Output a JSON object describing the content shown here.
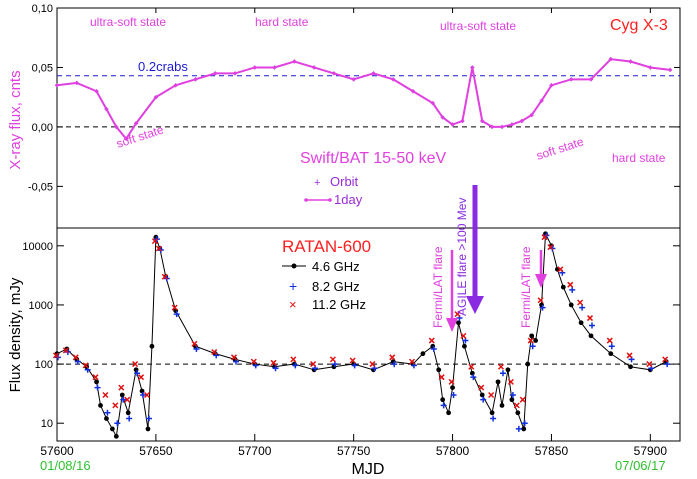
{
  "chart_data": [
    {
      "type": "scatter",
      "panel": "top",
      "ylabel": "X-ray flux, cnts",
      "xlim": [
        57600,
        57915
      ],
      "ylim": [
        -0.085,
        0.1
      ],
      "yticks": [
        -0.05,
        0.0,
        0.05,
        0.1
      ],
      "ytick_labels": [
        "-0,05",
        "0,00",
        "0,05",
        "0,10"
      ],
      "hlines": [
        {
          "y": 0.043,
          "style": "dashed",
          "color": "#1a1ad0",
          "label": "0.2crabs"
        },
        {
          "y": 0.0,
          "style": "dashed",
          "color": "#000000",
          "label": ""
        }
      ],
      "series": [
        {
          "name": "Orbit",
          "marker": "plus",
          "color": "#9a2bd6",
          "x": [
            57600,
            57610,
            57620,
            57625,
            57630,
            57635,
            57640,
            57650,
            57660,
            57670,
            57680,
            57690,
            57700,
            57710,
            57720,
            57730,
            57740,
            57750,
            57760,
            57770,
            57780,
            57790,
            57795,
            57800,
            57805,
            57810,
            57815,
            57820,
            57825,
            57830,
            57835,
            57840,
            57845,
            57850,
            57860,
            57870,
            57880,
            57890,
            57900,
            57910
          ],
          "values": [
            0.035,
            0.037,
            0.03,
            0.015,
            0.0,
            -0.01,
            0.003,
            0.025,
            0.035,
            0.04,
            0.045,
            0.045,
            0.05,
            0.05,
            0.055,
            0.05,
            0.045,
            0.04,
            0.045,
            0.04,
            0.03,
            0.02,
            0.008,
            0.002,
            0.005,
            0.05,
            0.005,
            0.0,
            0.0,
            0.002,
            0.005,
            0.01,
            0.022,
            0.035,
            0.04,
            0.04,
            0.057,
            0.055,
            0.05,
            0.048
          ]
        },
        {
          "name": "1day",
          "marker": "line",
          "color": "#e040e0",
          "x": [
            57600,
            57610,
            57620,
            57625,
            57630,
            57635,
            57640,
            57650,
            57660,
            57670,
            57680,
            57690,
            57700,
            57710,
            57720,
            57730,
            57740,
            57750,
            57760,
            57770,
            57780,
            57790,
            57795,
            57800,
            57805,
            57810,
            57815,
            57820,
            57825,
            57830,
            57835,
            57840,
            57845,
            57850,
            57860,
            57870,
            57880,
            57890,
            57900,
            57910
          ],
          "values": [
            0.035,
            0.037,
            0.03,
            0.015,
            0.0,
            -0.01,
            0.003,
            0.025,
            0.035,
            0.04,
            0.045,
            0.045,
            0.05,
            0.05,
            0.055,
            0.05,
            0.045,
            0.04,
            0.045,
            0.04,
            0.03,
            0.02,
            0.008,
            0.002,
            0.005,
            0.05,
            0.005,
            0.0,
            0.0,
            0.002,
            0.005,
            0.01,
            0.022,
            0.035,
            0.04,
            0.04,
            0.057,
            0.055,
            0.05,
            0.048
          ]
        }
      ],
      "annotations": {
        "state_ultrasoft_1": "ultra-soft state",
        "state_hard_1": "hard state",
        "state_ultrasoft_2": "ultra-soft state",
        "source": "Cyg X-3",
        "soft_1": "soft state",
        "soft_2": "soft state",
        "hard_2": "hard state",
        "instrument": "Swift/BAT  15-50 keV",
        "legend_orbit": "Orbit",
        "legend_day": "1day",
        "crab_level": "0.2crabs"
      },
      "colors": {
        "orbit": "#9a2bd6",
        "day": "#e040e0",
        "crab_line": "#1a1ad0",
        "source": "#ff2020"
      }
    },
    {
      "type": "scatter",
      "panel": "bottom",
      "title": "RATAN-600",
      "xlabel": "MJD",
      "ylabel": "Flux density, mJy",
      "yscale": "log",
      "xlim": [
        57600,
        57915
      ],
      "ylim": [
        5,
        20000
      ],
      "xticks": [
        57600,
        57650,
        57700,
        57750,
        57800,
        57850,
        57900
      ],
      "xtick_labels": [
        "57600",
        "57650",
        "57700",
        "57750",
        "57800",
        "57850",
        "57900"
      ],
      "yticks": [
        10,
        100,
        1000,
        10000
      ],
      "ytick_labels": [
        "10",
        "100",
        "1000",
        "10000"
      ],
      "hline": {
        "y": 100,
        "style": "dashed"
      },
      "series": [
        {
          "name": "4.6 GHz",
          "marker": "dot-line",
          "color": "#000000",
          "x": [
            57600,
            57605,
            57610,
            57615,
            57620,
            57622,
            57625,
            57628,
            57630,
            57633,
            57636,
            57640,
            57643,
            57646,
            57648,
            57650,
            57652,
            57655,
            57660,
            57670,
            57680,
            57690,
            57700,
            57710,
            57720,
            57730,
            57740,
            57750,
            57760,
            57770,
            57780,
            57785,
            57790,
            57793,
            57795,
            57798,
            57800,
            57803,
            57806,
            57810,
            57815,
            57820,
            57823,
            57825,
            57828,
            57830,
            57833,
            57836,
            57838,
            57840,
            57842,
            57845,
            57847,
            57850,
            57853,
            57856,
            57860,
            57865,
            57870,
            57880,
            57890,
            57900,
            57908
          ],
          "values": [
            150,
            180,
            120,
            90,
            50,
            20,
            12,
            8,
            6,
            30,
            15,
            80,
            35,
            8,
            200,
            14000,
            9000,
            3000,
            800,
            200,
            150,
            120,
            100,
            90,
            100,
            80,
            90,
            100,
            80,
            110,
            100,
            150,
            200,
            80,
            25,
            15,
            40,
            500,
            200,
            70,
            30,
            15,
            50,
            20,
            80,
            25,
            15,
            8,
            100,
            300,
            250,
            1000,
            16000,
            10000,
            4000,
            2000,
            1000,
            500,
            300,
            150,
            90,
            80,
            110
          ]
        },
        {
          "name": "8.2 GHz",
          "marker": "plus",
          "color": "#1030e0",
          "x": [
            57600,
            57605,
            57610,
            57615,
            57620,
            57625,
            57630,
            57633,
            57636,
            57640,
            57643,
            57646,
            57650,
            57652,
            57655,
            57660,
            57670,
            57680,
            57690,
            57700,
            57710,
            57720,
            57730,
            57740,
            57750,
            57760,
            57770,
            57780,
            57790,
            57795,
            57800,
            57803,
            57806,
            57810,
            57815,
            57820,
            57825,
            57830,
            57833,
            57836,
            57840,
            57845,
            57847,
            57850,
            57855,
            57860,
            57865,
            57870,
            57880,
            57890,
            57900,
            57908
          ],
          "values": [
            130,
            160,
            110,
            80,
            40,
            15,
            10,
            25,
            12,
            70,
            30,
            12,
            13000,
            8500,
            2800,
            700,
            180,
            140,
            110,
            95,
            85,
            95,
            85,
            100,
            95,
            85,
            100,
            95,
            180,
            20,
            30,
            600,
            250,
            60,
            25,
            12,
            70,
            30,
            8,
            10,
            200,
            900,
            15000,
            9000,
            3500,
            1800,
            900,
            450,
            200,
            120,
            85,
            100
          ]
        },
        {
          "name": "11.2 GHz",
          "marker": "cross",
          "color": "#e01010",
          "x": [
            57600,
            57605,
            57610,
            57615,
            57620,
            57625,
            57630,
            57633,
            57636,
            57640,
            57643,
            57646,
            57650,
            57652,
            57655,
            57660,
            57670,
            57680,
            57690,
            57700,
            57710,
            57720,
            57730,
            57740,
            57750,
            57760,
            57770,
            57780,
            57790,
            57795,
            57800,
            57803,
            57806,
            57810,
            57815,
            57820,
            57825,
            57830,
            57833,
            57836,
            57840,
            57845,
            57847,
            57850,
            57855,
            57860,
            57865,
            57870,
            57880,
            57890,
            57900,
            57908
          ],
          "values": [
            140,
            170,
            130,
            95,
            60,
            30,
            20,
            40,
            25,
            100,
            60,
            30,
            12000,
            9000,
            3000,
            900,
            220,
            160,
            130,
            110,
            105,
            120,
            100,
            120,
            115,
            100,
            130,
            110,
            250,
            60,
            50,
            700,
            300,
            90,
            40,
            30,
            90,
            50,
            20,
            25,
            250,
            1200,
            14000,
            9500,
            4000,
            2200,
            1100,
            600,
            250,
            140,
            100,
            120
          ]
        }
      ],
      "annotations": {
        "fermi_1": "Fermi/LAT flare",
        "agile": "AGILE flare >100 Mev",
        "fermi_2": "Fermi/LAT flare",
        "date_start": "01/08/16",
        "date_end": "07/06/17"
      },
      "colors": {
        "arrow": "#e040e0",
        "agile_arrow": "#8a2be2",
        "dates": "#2ec02e",
        "title": "#ff2020"
      }
    }
  ]
}
